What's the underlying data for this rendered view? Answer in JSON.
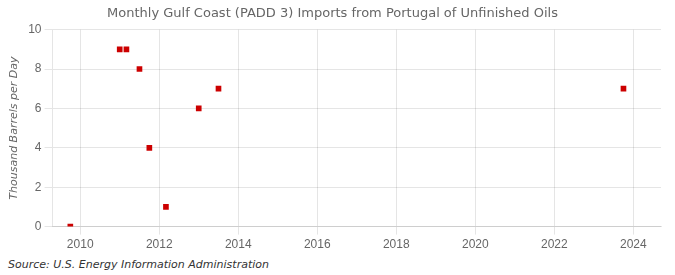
{
  "chart_data": {
    "type": "scatter",
    "title": "Monthly Gulf Coast (PADD 3) Imports from Portugal of Unfinished Oils",
    "ylabel": "Thousand Barrels per Day",
    "annotation": "Source: U.S. Energy Information Administration",
    "x": [
      2009.75,
      2011.0,
      2011.17,
      2011.5,
      2011.75,
      2012.17,
      2013.0,
      2013.5,
      2023.75
    ],
    "values": [
      0,
      9,
      9,
      8,
      4,
      1,
      6,
      7,
      7
    ],
    "color": "#cc0000",
    "marker": "square",
    "xlim": [
      2009.3,
      2024.7
    ],
    "ylim": [
      0,
      10
    ],
    "xticks": [
      2010,
      2012,
      2014,
      2016,
      2018,
      2020,
      2022,
      2024
    ],
    "yticks": [
      0,
      2,
      4,
      6,
      8,
      10
    ],
    "grid": true
  }
}
